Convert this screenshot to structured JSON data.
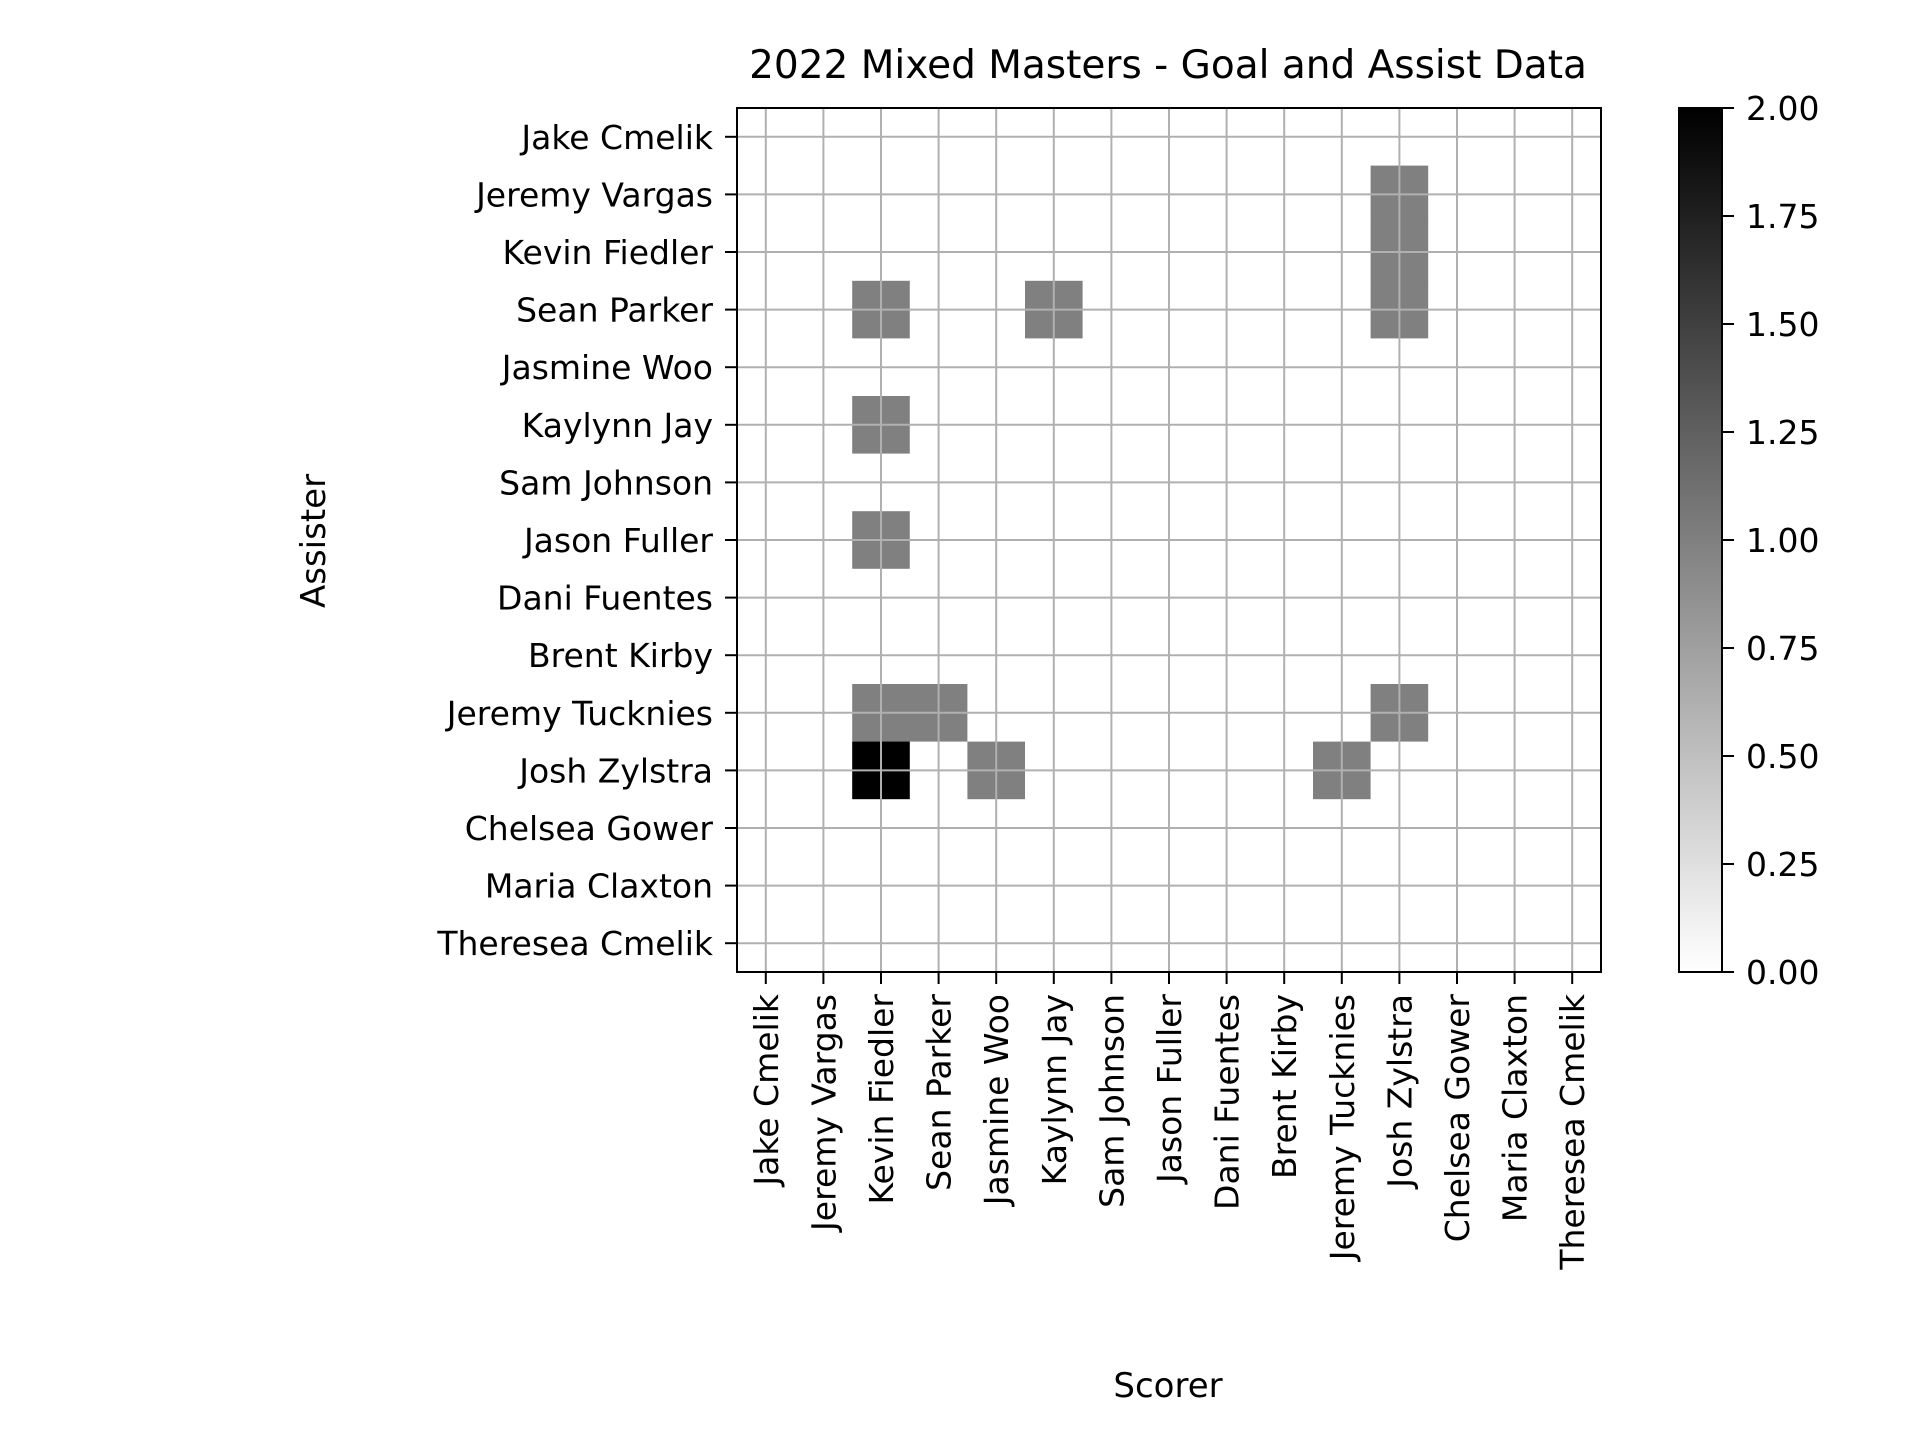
{
  "chart_data": {
    "type": "heatmap",
    "title": "2022 Mixed Masters - Goal and Assist Data",
    "xlabel": "Scorer",
    "ylabel": "Assister",
    "x_categories": [
      "Jake Cmelik",
      "Jeremy Vargas",
      "Kevin Fiedler",
      "Sean Parker",
      "Jasmine Woo",
      "Kaylynn Jay",
      "Sam Johnson",
      "Jason Fuller",
      "Dani Fuentes",
      "Brent Kirby",
      "Jeremy Tucknies",
      "Josh Zylstra",
      "Chelsea Gower",
      "Maria Claxton",
      "Theresea Cmelik"
    ],
    "y_categories": [
      "Jake Cmelik",
      "Jeremy Vargas",
      "Kevin Fiedler",
      "Sean Parker",
      "Jasmine Woo",
      "Kaylynn Jay",
      "Sam Johnson",
      "Jason Fuller",
      "Dani Fuentes",
      "Brent Kirby",
      "Jeremy Tucknies",
      "Josh Zylstra",
      "Chelsea Gower",
      "Maria Claxton",
      "Theresea Cmelik"
    ],
    "values": [
      [
        0,
        0,
        0,
        0,
        0,
        0,
        0,
        0,
        0,
        0,
        0,
        0,
        0,
        0,
        0
      ],
      [
        0,
        0,
        0,
        0,
        0,
        0,
        0,
        0,
        0,
        0,
        0,
        1,
        0,
        0,
        0
      ],
      [
        0,
        0,
        0,
        0,
        0,
        0,
        0,
        0,
        0,
        0,
        0,
        1,
        0,
        0,
        0
      ],
      [
        0,
        0,
        1,
        0,
        0,
        1,
        0,
        0,
        0,
        0,
        0,
        1,
        0,
        0,
        0
      ],
      [
        0,
        0,
        0,
        0,
        0,
        0,
        0,
        0,
        0,
        0,
        0,
        0,
        0,
        0,
        0
      ],
      [
        0,
        0,
        1,
        0,
        0,
        0,
        0,
        0,
        0,
        0,
        0,
        0,
        0,
        0,
        0
      ],
      [
        0,
        0,
        0,
        0,
        0,
        0,
        0,
        0,
        0,
        0,
        0,
        0,
        0,
        0,
        0
      ],
      [
        0,
        0,
        1,
        0,
        0,
        0,
        0,
        0,
        0,
        0,
        0,
        0,
        0,
        0,
        0
      ],
      [
        0,
        0,
        0,
        0,
        0,
        0,
        0,
        0,
        0,
        0,
        0,
        0,
        0,
        0,
        0
      ],
      [
        0,
        0,
        0,
        0,
        0,
        0,
        0,
        0,
        0,
        0,
        0,
        0,
        0,
        0,
        0
      ],
      [
        0,
        0,
        1,
        1,
        0,
        0,
        0,
        0,
        0,
        0,
        0,
        1,
        0,
        0,
        0
      ],
      [
        0,
        0,
        2,
        0,
        1,
        0,
        0,
        0,
        0,
        0,
        1,
        0,
        0,
        0,
        0
      ],
      [
        0,
        0,
        0,
        0,
        0,
        0,
        0,
        0,
        0,
        0,
        0,
        0,
        0,
        0,
        0
      ],
      [
        0,
        0,
        0,
        0,
        0,
        0,
        0,
        0,
        0,
        0,
        0,
        0,
        0,
        0,
        0
      ],
      [
        0,
        0,
        0,
        0,
        0,
        0,
        0,
        0,
        0,
        0,
        0,
        0,
        0,
        0,
        0
      ]
    ],
    "colorbar": {
      "range": [
        0,
        2
      ],
      "ticks": [
        "0.00",
        "0.25",
        "0.50",
        "0.75",
        "1.00",
        "1.25",
        "1.50",
        "1.75",
        "2.00"
      ],
      "colormap": "gray_r"
    },
    "grid": true,
    "grid_color": "#b0b0b0"
  }
}
